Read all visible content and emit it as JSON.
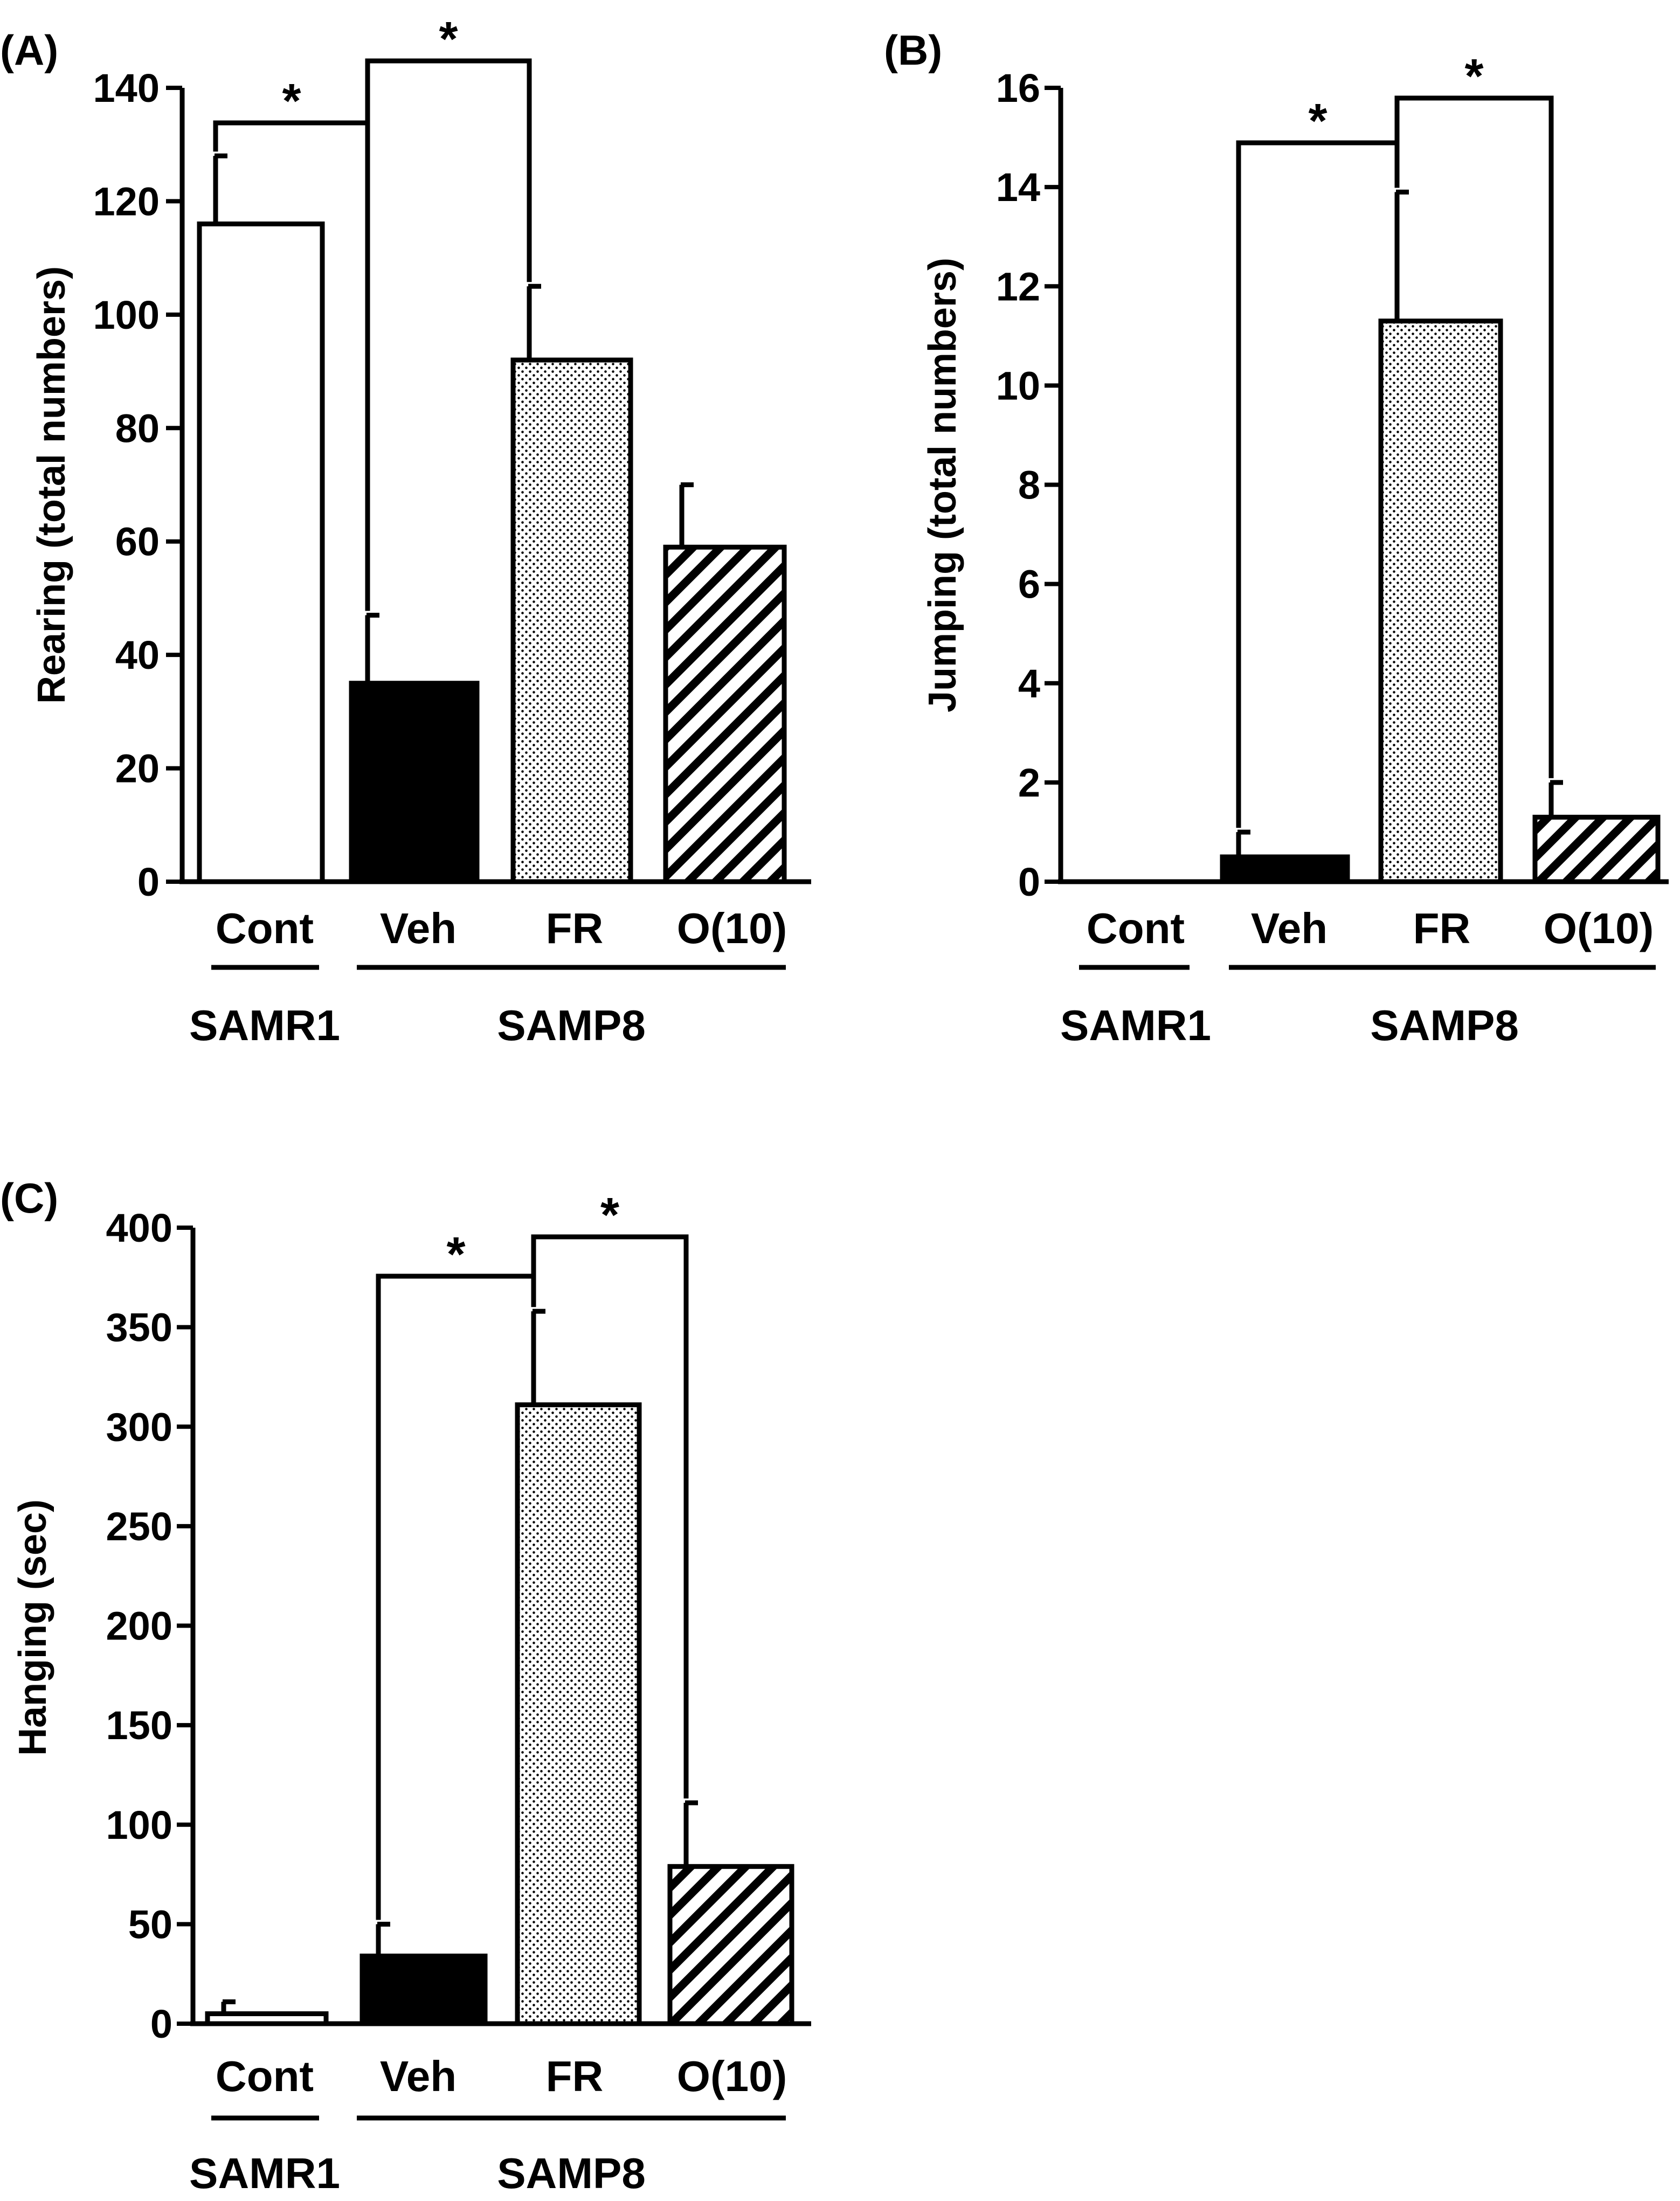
{
  "chart_data": [
    {
      "panel_label": "(A)",
      "type": "bar",
      "ylabel": "Rearing (total numbers)",
      "ylim": [
        0,
        140
      ],
      "yticks": [
        "0",
        "20",
        "40",
        "60",
        "80",
        "100",
        "120",
        "140"
      ],
      "categories": [
        "Cont",
        "Veh",
        "FR",
        "O(10)"
      ],
      "values": [
        116,
        35,
        92,
        59
      ],
      "errors": [
        12,
        12,
        13,
        11
      ],
      "group_labels": [
        "SAMR1",
        "SAMP8"
      ],
      "significance": [
        {
          "from": "Cont",
          "to": "Veh",
          "label": "*"
        },
        {
          "from": "Veh",
          "to": "FR",
          "label": "*"
        }
      ]
    },
    {
      "panel_label": "(B)",
      "type": "bar",
      "ylabel": "Jumping (total numbers)",
      "ylim": [
        0,
        16
      ],
      "yticks": [
        "0",
        "2",
        "4",
        "6",
        "8",
        "10",
        "12",
        "14",
        "16"
      ],
      "categories": [
        "Cont",
        "Veh",
        "FR",
        "O(10)"
      ],
      "values": [
        0,
        0.5,
        11.3,
        1.3
      ],
      "errors": [
        0,
        0.5,
        2.6,
        0.7
      ],
      "group_labels": [
        "SAMR1",
        "SAMP8"
      ],
      "significance": [
        {
          "from": "Veh",
          "to": "FR",
          "label": "*"
        },
        {
          "from": "FR",
          "to": "O(10)",
          "label": "*"
        }
      ]
    },
    {
      "panel_label": "(C)",
      "type": "bar",
      "ylabel": "Hanging (sec)",
      "ylim": [
        0,
        400
      ],
      "yticks": [
        "0",
        "50",
        "100",
        "150",
        "200",
        "250",
        "300",
        "350",
        "400"
      ],
      "categories": [
        "Cont",
        "Veh",
        "FR",
        "O(10)"
      ],
      "values": [
        5,
        34,
        311,
        79
      ],
      "errors": [
        6,
        16,
        47,
        32
      ],
      "group_labels": [
        "SAMR1",
        "SAMP8"
      ],
      "significance": [
        {
          "from": "Veh",
          "to": "FR",
          "label": "*"
        },
        {
          "from": "FR",
          "to": "O(10)",
          "label": "*"
        }
      ]
    }
  ],
  "colors": {
    "ink": "#000000",
    "paper": "#ffffff"
  }
}
